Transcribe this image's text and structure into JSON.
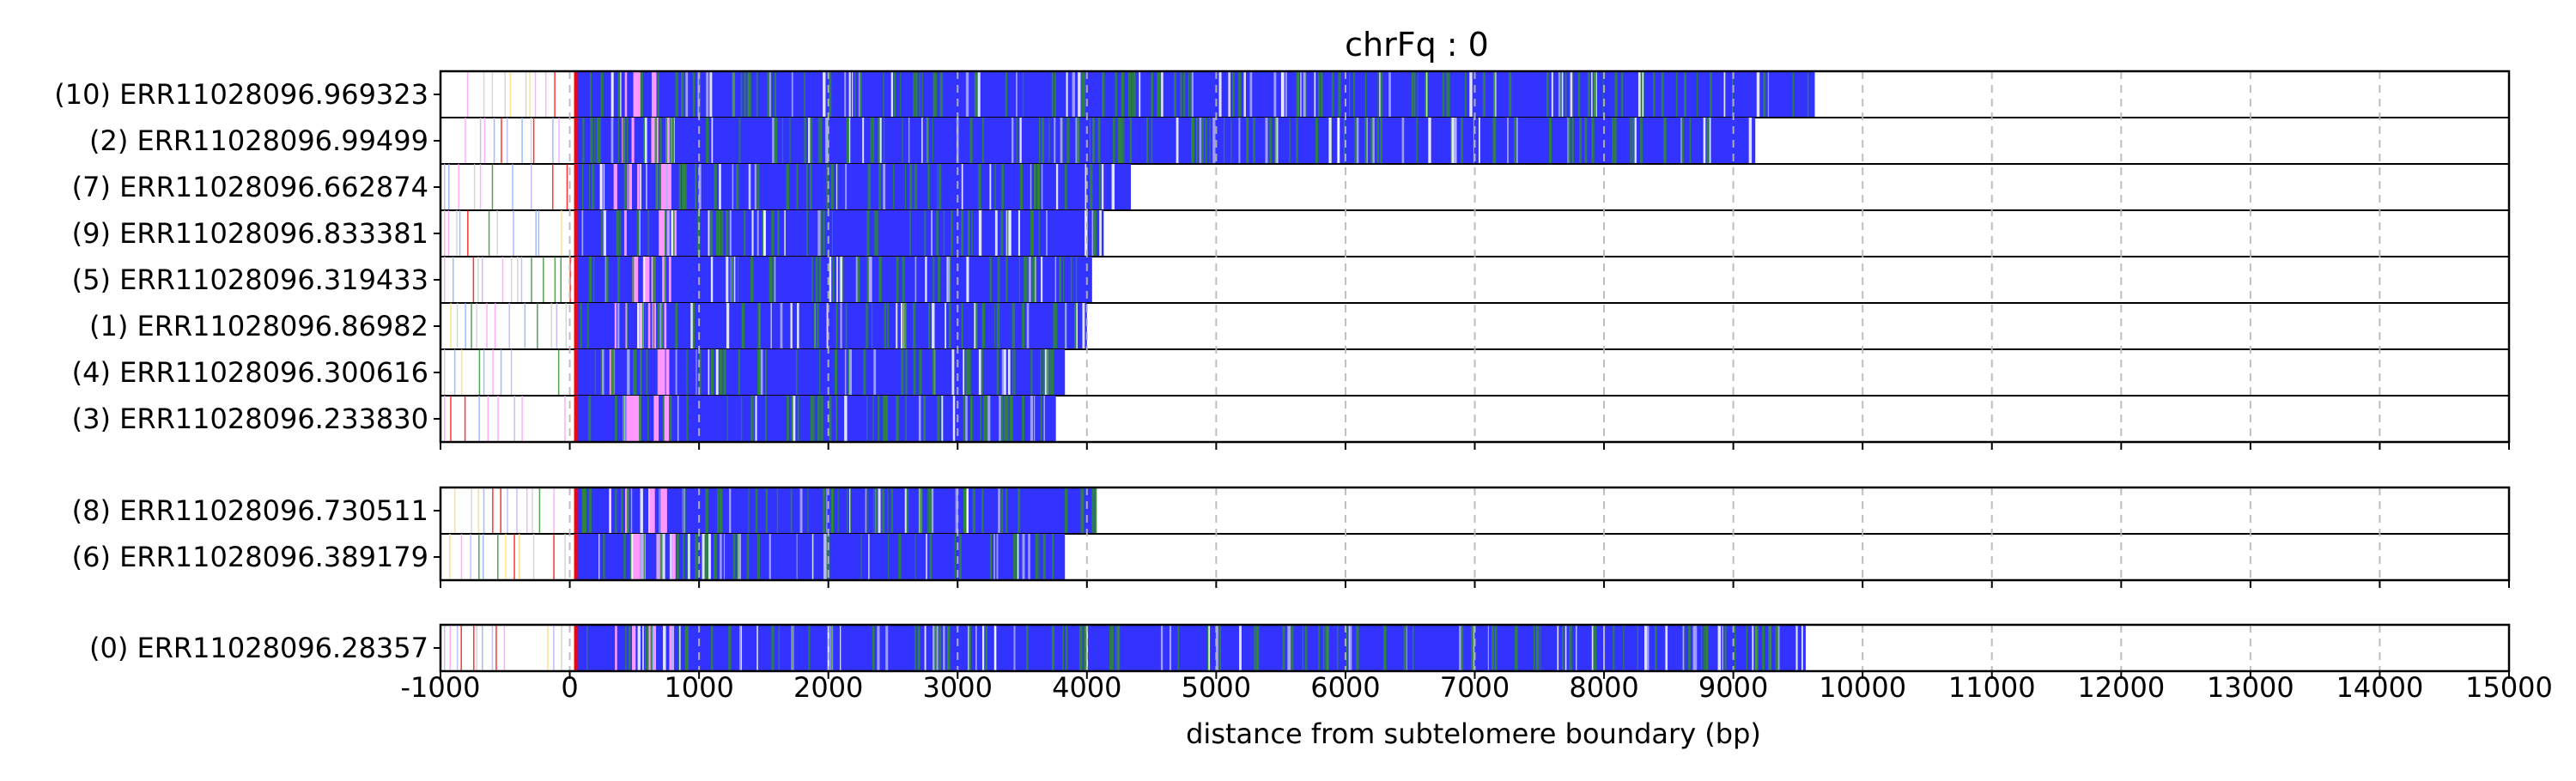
{
  "chart_data": {
    "type": "bar",
    "title": "chrFq : 0",
    "xlabel": "distance from subtelomere boundary (bp)",
    "xlim": [
      -1000,
      15000
    ],
    "xticks": [
      "-1000",
      "0",
      "1000",
      "2000",
      "3000",
      "4000",
      "5000",
      "6000",
      "7000",
      "8000",
      "9000",
      "10000",
      "11000",
      "12000",
      "13000",
      "14000",
      "15000"
    ],
    "grid": "vertical dashed",
    "groups": [
      {
        "reads": [
          {
            "label": "(10) ERR11028096.969323",
            "start": -1000,
            "end": 9630
          },
          {
            "label": "(2) ERR11028096.99499",
            "start": -1000,
            "end": 9170
          },
          {
            "label": "(7) ERR11028096.662874",
            "start": -1000,
            "end": 4340
          },
          {
            "label": "(9) ERR11028096.833381",
            "start": -1000,
            "end": 4130
          },
          {
            "label": "(5) ERR11028096.319433",
            "start": -1000,
            "end": 4040
          },
          {
            "label": "(1) ERR11028096.86982",
            "start": -1000,
            "end": 4000
          },
          {
            "label": "(4) ERR11028096.300616",
            "start": -1000,
            "end": 3830
          },
          {
            "label": "(3) ERR11028096.233830",
            "start": -1000,
            "end": 3760
          }
        ]
      },
      {
        "reads": [
          {
            "label": "(8) ERR11028096.730511",
            "start": -1000,
            "end": 4070
          },
          {
            "label": "(6) ERR11028096.389179",
            "start": -1000,
            "end": 3830
          }
        ]
      },
      {
        "reads": [
          {
            "label": "(0) ERR11028096.28357",
            "start": -1000,
            "end": 9560
          }
        ]
      }
    ],
    "colors": {
      "main": "#3333ff",
      "green": "#2e8b2e",
      "pink": "#ff99ff",
      "red": "#ff0000",
      "white": "#ffffff",
      "light": "#b0b0ff",
      "yellow": "#ffd966"
    }
  }
}
